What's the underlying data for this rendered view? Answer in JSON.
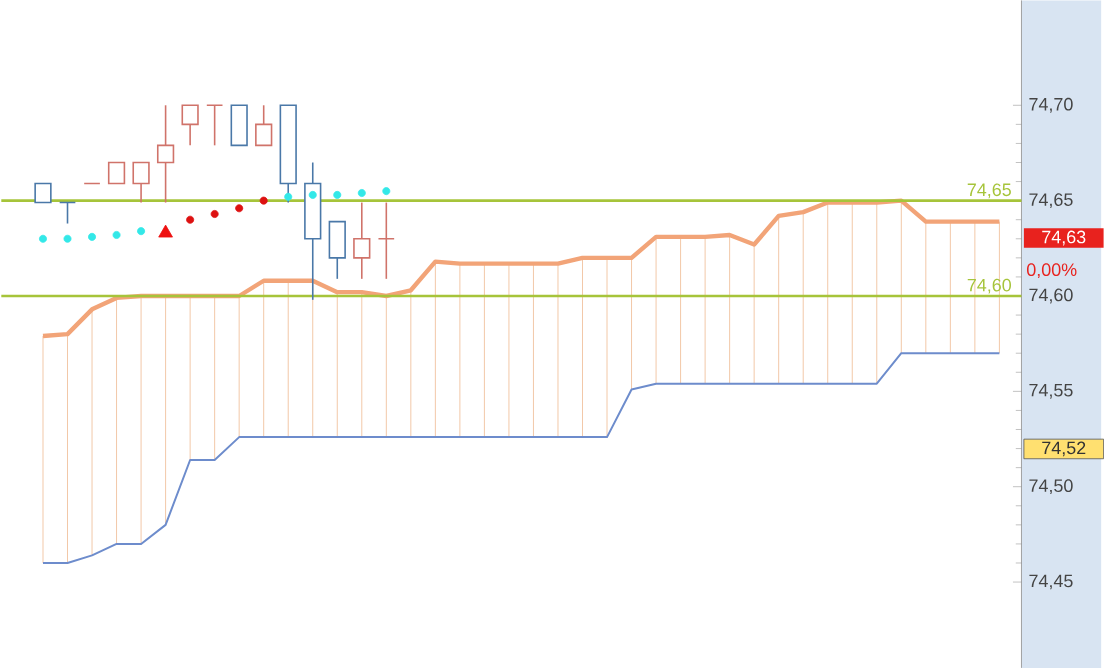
{
  "chart_data": {
    "type": "line",
    "categories": [
      null,
      null,
      null,
      null,
      null,
      null,
      null,
      null,
      null,
      null,
      null,
      null,
      null,
      null,
      null,
      null,
      null,
      null,
      null,
      null,
      null,
      null,
      null,
      null,
      null,
      null,
      null,
      null,
      null,
      null,
      null,
      null,
      null,
      null,
      null,
      null,
      null,
      null,
      null,
      null
    ],
    "series": [
      {
        "color": "#f2a478",
        "values": [
          74.579,
          74.58,
          74.593,
          74.599,
          74.6,
          74.6,
          74.6,
          74.6,
          74.6,
          74.608,
          74.608,
          74.608,
          74.602,
          74.602,
          74.6,
          74.603,
          74.618,
          74.617,
          74.617,
          74.617,
          74.617,
          74.617,
          74.62,
          74.62,
          74.62,
          74.631,
          74.631,
          74.631,
          74.632,
          74.627,
          74.642,
          74.644,
          74.649,
          74.649,
          74.649,
          74.65,
          74.639,
          74.639,
          74.639,
          74.639
        ],
        "errors": [
          [
            74.46,
            74.579
          ],
          [
            74.46,
            74.58
          ],
          [
            74.464,
            74.593
          ],
          [
            74.47,
            74.599
          ],
          [
            74.47,
            74.6
          ],
          [
            74.48,
            74.6
          ],
          [
            74.514,
            74.6
          ],
          [
            74.514,
            74.6
          ],
          [
            74.526,
            74.6
          ],
          [
            74.526,
            74.608
          ],
          [
            74.526,
            74.608
          ],
          [
            74.526,
            74.608
          ],
          [
            74.526,
            74.602
          ],
          [
            74.526,
            74.602
          ],
          [
            74.526,
            74.6
          ],
          [
            74.526,
            74.603
          ],
          [
            74.526,
            74.618
          ],
          [
            74.526,
            74.617
          ],
          [
            74.526,
            74.617
          ],
          [
            74.526,
            74.617
          ],
          [
            74.526,
            74.617
          ],
          [
            74.526,
            74.617
          ],
          [
            74.526,
            74.62
          ],
          [
            74.526,
            74.62
          ],
          [
            74.551,
            74.62
          ],
          [
            74.554,
            74.631
          ],
          [
            74.554,
            74.631
          ],
          [
            74.554,
            74.631
          ],
          [
            74.554,
            74.632
          ],
          [
            74.554,
            74.627
          ],
          [
            74.554,
            74.642
          ],
          [
            74.554,
            74.644
          ],
          [
            74.554,
            74.649
          ],
          [
            74.554,
            74.649
          ],
          [
            74.554,
            74.649
          ],
          [
            74.57,
            74.65
          ],
          [
            74.57,
            74.639
          ],
          [
            74.57,
            74.639
          ],
          [
            74.57,
            74.639
          ],
          [
            74.57,
            74.639
          ]
        ]
      },
      {
        "color": "#6d8ccc",
        "values": [
          74.46,
          74.46,
          74.464,
          74.47,
          74.47,
          74.48,
          74.514,
          74.514,
          74.526,
          74.526,
          74.526,
          74.526,
          74.526,
          74.526,
          74.526,
          74.526,
          74.526,
          74.526,
          74.526,
          74.526,
          74.526,
          74.526,
          74.526,
          74.526,
          74.551,
          74.554,
          74.554,
          74.554,
          74.554,
          74.554,
          74.554,
          74.554,
          74.554,
          74.554,
          74.554,
          74.57,
          74.57,
          74.57,
          74.57,
          74.57
        ]
      },
      {
        "type": "scatter",
        "marker": "circle",
        "color": "#33e8e8",
        "values": [
          74.63,
          74.63,
          74.631,
          74.632,
          74.634,
          null,
          null,
          null,
          null,
          null,
          74.652,
          74.653,
          74.653,
          74.654,
          74.655,
          null,
          null,
          null,
          null,
          null,
          null,
          null,
          null,
          null,
          null,
          null,
          null,
          null,
          null,
          null,
          null,
          null,
          null,
          null,
          null,
          null,
          null,
          null,
          null,
          null
        ]
      },
      {
        "type": "scatter",
        "marker": "circle",
        "color": "#dd1111",
        "values": [
          null,
          null,
          null,
          null,
          null,
          null,
          74.64,
          74.643,
          74.646,
          74.65,
          null,
          null,
          null,
          null,
          null,
          null,
          null,
          null,
          null,
          null,
          null,
          null,
          null,
          null,
          null,
          null,
          null,
          null,
          null,
          null,
          null,
          null,
          null,
          null,
          null,
          null,
          null,
          null,
          null,
          null
        ]
      },
      {
        "type": "scatter",
        "marker": "triangle",
        "color": "#ee1111",
        "values": [
          null,
          null,
          null,
          null,
          null,
          74.633,
          null,
          null,
          null,
          null,
          null,
          null,
          null,
          null,
          null,
          null,
          null,
          null,
          null,
          null,
          null,
          null,
          null,
          null,
          null,
          null,
          null,
          null,
          null,
          null,
          null,
          null,
          null,
          null,
          null,
          null,
          null,
          null,
          null,
          null
        ]
      },
      {
        "type": "candlestick",
        "ohlc": [
          [
            74.659,
            74.659,
            74.649,
            74.649
          ],
          [
            74.649,
            74.649,
            74.638,
            74.649
          ],
          [
            74.659,
            74.659,
            74.659,
            74.659
          ],
          [
            74.659,
            74.67,
            74.659,
            74.67
          ],
          [
            74.659,
            74.67,
            74.649,
            74.67
          ],
          [
            74.67,
            74.7,
            74.649,
            74.679
          ],
          [
            74.69,
            74.7,
            74.679,
            74.7
          ],
          [
            74.7,
            74.7,
            74.679,
            74.7
          ],
          [
            74.7,
            74.7,
            74.679,
            74.679
          ],
          [
            74.679,
            74.7,
            74.679,
            74.69
          ],
          [
            74.7,
            74.7,
            74.649,
            74.659
          ],
          [
            74.659,
            74.67,
            74.598,
            74.63
          ],
          [
            74.639,
            74.639,
            74.609,
            74.62
          ],
          [
            74.62,
            74.649,
            74.609,
            74.63
          ],
          [
            74.63,
            74.649,
            74.609,
            74.63
          ],
          null,
          null,
          null,
          null,
          null,
          null,
          null,
          null,
          null,
          null,
          null,
          null,
          null,
          null,
          null,
          null,
          null,
          null,
          null,
          null,
          null,
          null,
          null,
          null,
          null
        ],
        "colors": [
          "#4a78a8",
          "#4a78a8",
          "#d0736a",
          "#d0736a",
          "#d0736a",
          "#d0736a",
          "#d0736a",
          "#d0736a",
          "#4a78a8",
          "#d0736a",
          "#4a78a8",
          "#4a78a8",
          "#4a78a8",
          "#d0736a",
          "#d0736a",
          null,
          null,
          null,
          null,
          null,
          null,
          null,
          null,
          null,
          null,
          null,
          null,
          null,
          null,
          null,
          null,
          null,
          null,
          null,
          null,
          null,
          null,
          null,
          null,
          null
        ]
      }
    ],
    "ylim": [
      74.405,
      74.755
    ],
    "yticks": [
      {
        "value": 74.45,
        "label": "74,45"
      },
      {
        "value": 74.5,
        "label": "74,50"
      },
      {
        "value": 74.55,
        "label": "74,55"
      },
      {
        "value": 74.6,
        "label": "74,60"
      },
      {
        "value": 74.65,
        "label": "74,65"
      },
      {
        "value": 74.7,
        "label": "74,70"
      }
    ],
    "tick_labels": "y",
    "ref_lines": [
      {
        "axis": "y",
        "value": 74.65,
        "label": "74,65",
        "color": "#a6c43a"
      },
      {
        "axis": "y",
        "value": 74.6,
        "label": "74,60",
        "color": "#a6c43a"
      }
    ],
    "annotations": [
      "74,63",
      "0,00%",
      "74,52"
    ]
  }
}
